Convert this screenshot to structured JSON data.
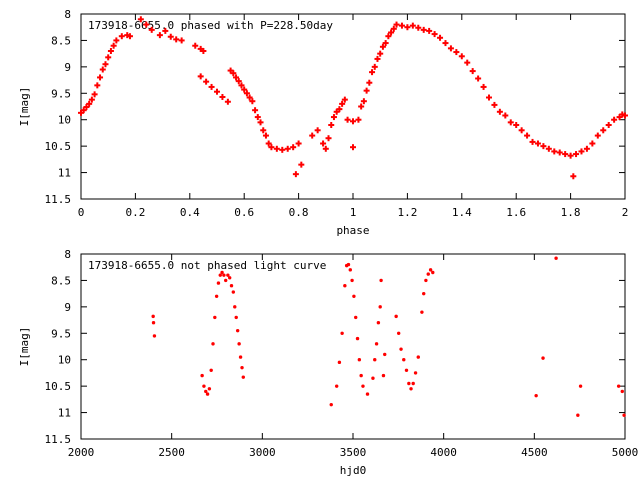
{
  "colors": {
    "points": "#ff0000",
    "axes": "#000000",
    "background": "#ffffff"
  },
  "chart_data": [
    {
      "type": "scatter",
      "title": "173918-6655.0 phased with P=228.50day",
      "xlabel": "phase",
      "ylabel": "I[mag]",
      "xlim": [
        0,
        2
      ],
      "ylim": [
        8,
        11.5
      ],
      "y_inverted": true,
      "xticks": [
        "0",
        "0.2",
        "0.4",
        "0.6",
        "0.8",
        "1",
        "1.2",
        "1.4",
        "1.6",
        "1.8",
        "2"
      ],
      "yticks": [
        "8",
        "8.5",
        "9",
        "9.5",
        "10",
        "10.5",
        "11",
        "11.5"
      ],
      "grid": false,
      "marker": "plus",
      "series": [
        {
          "points": [
            [
              0.0,
              9.87
            ],
            [
              0.01,
              9.82
            ],
            [
              0.02,
              9.76
            ],
            [
              0.03,
              9.7
            ],
            [
              0.04,
              9.62
            ],
            [
              0.05,
              9.52
            ],
            [
              0.06,
              9.35
            ],
            [
              0.07,
              9.2
            ],
            [
              0.08,
              9.05
            ],
            [
              0.09,
              8.95
            ],
            [
              0.1,
              8.82
            ],
            [
              0.11,
              8.7
            ],
            [
              0.12,
              8.6
            ],
            [
              0.13,
              8.5
            ],
            [
              0.15,
              8.42
            ],
            [
              0.17,
              8.4
            ],
            [
              0.18,
              8.42
            ],
            [
              0.22,
              8.1
            ],
            [
              0.24,
              8.2
            ],
            [
              0.26,
              8.3
            ],
            [
              0.29,
              8.4
            ],
            [
              0.31,
              8.32
            ],
            [
              0.33,
              8.43
            ],
            [
              0.35,
              8.48
            ],
            [
              0.37,
              8.5
            ],
            [
              0.42,
              8.6
            ],
            [
              0.44,
              8.66
            ],
            [
              0.45,
              8.7
            ],
            [
              0.44,
              9.18
            ],
            [
              0.46,
              9.28
            ],
            [
              0.48,
              9.38
            ],
            [
              0.5,
              9.47
            ],
            [
              0.52,
              9.57
            ],
            [
              0.54,
              9.66
            ],
            [
              0.55,
              9.07
            ],
            [
              0.56,
              9.12
            ],
            [
              0.57,
              9.2
            ],
            [
              0.58,
              9.27
            ],
            [
              0.59,
              9.35
            ],
            [
              0.6,
              9.43
            ],
            [
              0.61,
              9.5
            ],
            [
              0.62,
              9.58
            ],
            [
              0.63,
              9.65
            ],
            [
              0.64,
              9.82
            ],
            [
              0.65,
              9.95
            ],
            [
              0.66,
              10.05
            ],
            [
              0.67,
              10.2
            ],
            [
              0.68,
              10.3
            ],
            [
              0.69,
              10.45
            ],
            [
              0.7,
              10.52
            ],
            [
              0.72,
              10.55
            ],
            [
              0.74,
              10.57
            ],
            [
              0.76,
              10.55
            ],
            [
              0.78,
              10.52
            ],
            [
              0.8,
              10.45
            ],
            [
              0.79,
              11.03
            ],
            [
              0.81,
              10.85
            ],
            [
              0.85,
              10.3
            ],
            [
              0.87,
              10.2
            ],
            [
              0.89,
              10.45
            ],
            [
              0.9,
              10.55
            ],
            [
              0.91,
              10.35
            ],
            [
              0.92,
              10.1
            ],
            [
              0.93,
              9.95
            ],
            [
              0.94,
              9.85
            ],
            [
              0.95,
              9.8
            ],
            [
              0.96,
              9.7
            ],
            [
              0.97,
              9.62
            ],
            [
              0.98,
              10.0
            ],
            [
              1.0,
              10.03
            ],
            [
              1.0,
              10.52
            ],
            [
              1.02,
              10.0
            ],
            [
              1.03,
              9.75
            ],
            [
              1.04,
              9.65
            ],
            [
              1.05,
              9.45
            ],
            [
              1.06,
              9.3
            ],
            [
              1.07,
              9.1
            ],
            [
              1.08,
              9.0
            ],
            [
              1.09,
              8.85
            ],
            [
              1.1,
              8.75
            ],
            [
              1.11,
              8.62
            ],
            [
              1.12,
              8.55
            ],
            [
              1.13,
              8.42
            ],
            [
              1.14,
              8.35
            ],
            [
              1.15,
              8.28
            ],
            [
              1.16,
              8.2
            ],
            [
              1.18,
              8.22
            ],
            [
              1.2,
              8.25
            ],
            [
              1.22,
              8.22
            ],
            [
              1.24,
              8.26
            ],
            [
              1.26,
              8.3
            ],
            [
              1.28,
              8.32
            ],
            [
              1.3,
              8.38
            ],
            [
              1.32,
              8.45
            ],
            [
              1.34,
              8.55
            ],
            [
              1.36,
              8.65
            ],
            [
              1.38,
              8.72
            ],
            [
              1.4,
              8.8
            ],
            [
              1.42,
              8.92
            ],
            [
              1.44,
              9.08
            ],
            [
              1.46,
              9.22
            ],
            [
              1.48,
              9.38
            ],
            [
              1.5,
              9.58
            ],
            [
              1.52,
              9.72
            ],
            [
              1.54,
              9.85
            ],
            [
              1.56,
              9.92
            ],
            [
              1.58,
              10.05
            ],
            [
              1.6,
              10.1
            ],
            [
              1.62,
              10.2
            ],
            [
              1.64,
              10.3
            ],
            [
              1.66,
              10.42
            ],
            [
              1.68,
              10.45
            ],
            [
              1.7,
              10.5
            ],
            [
              1.72,
              10.55
            ],
            [
              1.74,
              10.6
            ],
            [
              1.76,
              10.62
            ],
            [
              1.78,
              10.65
            ],
            [
              1.8,
              10.68
            ],
            [
              1.81,
              11.07
            ],
            [
              1.82,
              10.65
            ],
            [
              1.84,
              10.6
            ],
            [
              1.86,
              10.55
            ],
            [
              1.88,
              10.45
            ],
            [
              1.9,
              10.3
            ],
            [
              1.92,
              10.2
            ],
            [
              1.94,
              10.1
            ],
            [
              1.96,
              10.0
            ],
            [
              1.98,
              9.95
            ],
            [
              1.99,
              9.9
            ],
            [
              2.0,
              9.92
            ]
          ]
        }
      ]
    },
    {
      "type": "scatter",
      "title": "173918-6655.0 not phased light curve",
      "xlabel": "hjd0",
      "ylabel": "I[mag]",
      "xlim": [
        2000,
        5000
      ],
      "ylim": [
        8,
        11.5
      ],
      "y_inverted": true,
      "xticks": [
        "2000",
        "2500",
        "3000",
        "3500",
        "4000",
        "4500",
        "5000"
      ],
      "yticks": [
        "8",
        "8.5",
        "9",
        "9.5",
        "10",
        "10.5",
        "11",
        "11.5"
      ],
      "grid": false,
      "marker": "dot",
      "series": [
        {
          "points": [
            [
              2398,
              9.18
            ],
            [
              2400,
              9.3
            ],
            [
              2405,
              9.55
            ],
            [
              2668,
              10.3
            ],
            [
              2678,
              10.5
            ],
            [
              2688,
              10.6
            ],
            [
              2698,
              10.65
            ],
            [
              2708,
              10.55
            ],
            [
              2718,
              10.2
            ],
            [
              2728,
              9.7
            ],
            [
              2738,
              9.2
            ],
            [
              2748,
              8.8
            ],
            [
              2758,
              8.55
            ],
            [
              2768,
              8.4
            ],
            [
              2778,
              8.35
            ],
            [
              2788,
              8.4
            ],
            [
              2798,
              8.5
            ],
            [
              2810,
              8.4
            ],
            [
              2820,
              8.45
            ],
            [
              2830,
              8.6
            ],
            [
              2840,
              8.72
            ],
            [
              2848,
              9.0
            ],
            [
              2856,
              9.2
            ],
            [
              2864,
              9.45
            ],
            [
              2872,
              9.7
            ],
            [
              2880,
              9.95
            ],
            [
              2888,
              10.15
            ],
            [
              2895,
              10.33
            ],
            [
              3380,
              10.85
            ],
            [
              3410,
              10.5
            ],
            [
              3425,
              10.05
            ],
            [
              3440,
              9.5
            ],
            [
              3455,
              8.6
            ],
            [
              3465,
              8.22
            ],
            [
              3475,
              8.2
            ],
            [
              3485,
              8.3
            ],
            [
              3495,
              8.5
            ],
            [
              3505,
              8.8
            ],
            [
              3515,
              9.2
            ],
            [
              3525,
              9.6
            ],
            [
              3535,
              10.0
            ],
            [
              3545,
              10.3
            ],
            [
              3555,
              10.5
            ],
            [
              3580,
              10.65
            ],
            [
              3610,
              10.35
            ],
            [
              3620,
              10.0
            ],
            [
              3630,
              9.7
            ],
            [
              3640,
              9.3
            ],
            [
              3650,
              9.0
            ],
            [
              3655,
              8.5
            ],
            [
              3668,
              10.3
            ],
            [
              3675,
              9.9
            ],
            [
              3738,
              9.18
            ],
            [
              3752,
              9.5
            ],
            [
              3765,
              9.8
            ],
            [
              3780,
              10.0
            ],
            [
              3795,
              10.2
            ],
            [
              3808,
              10.45
            ],
            [
              3820,
              10.55
            ],
            [
              3832,
              10.45
            ],
            [
              3845,
              10.25
            ],
            [
              3860,
              9.95
            ],
            [
              3880,
              9.1
            ],
            [
              3890,
              8.75
            ],
            [
              3902,
              8.5
            ],
            [
              3915,
              8.38
            ],
            [
              3928,
              8.3
            ],
            [
              3940,
              8.35
            ],
            [
              4510,
              10.68
            ],
            [
              4548,
              9.97
            ],
            [
              4620,
              8.08
            ],
            [
              4740,
              11.05
            ],
            [
              4755,
              10.5
            ],
            [
              4965,
              10.5
            ],
            [
              4985,
              10.6
            ],
            [
              4995,
              11.05
            ]
          ]
        }
      ]
    }
  ]
}
